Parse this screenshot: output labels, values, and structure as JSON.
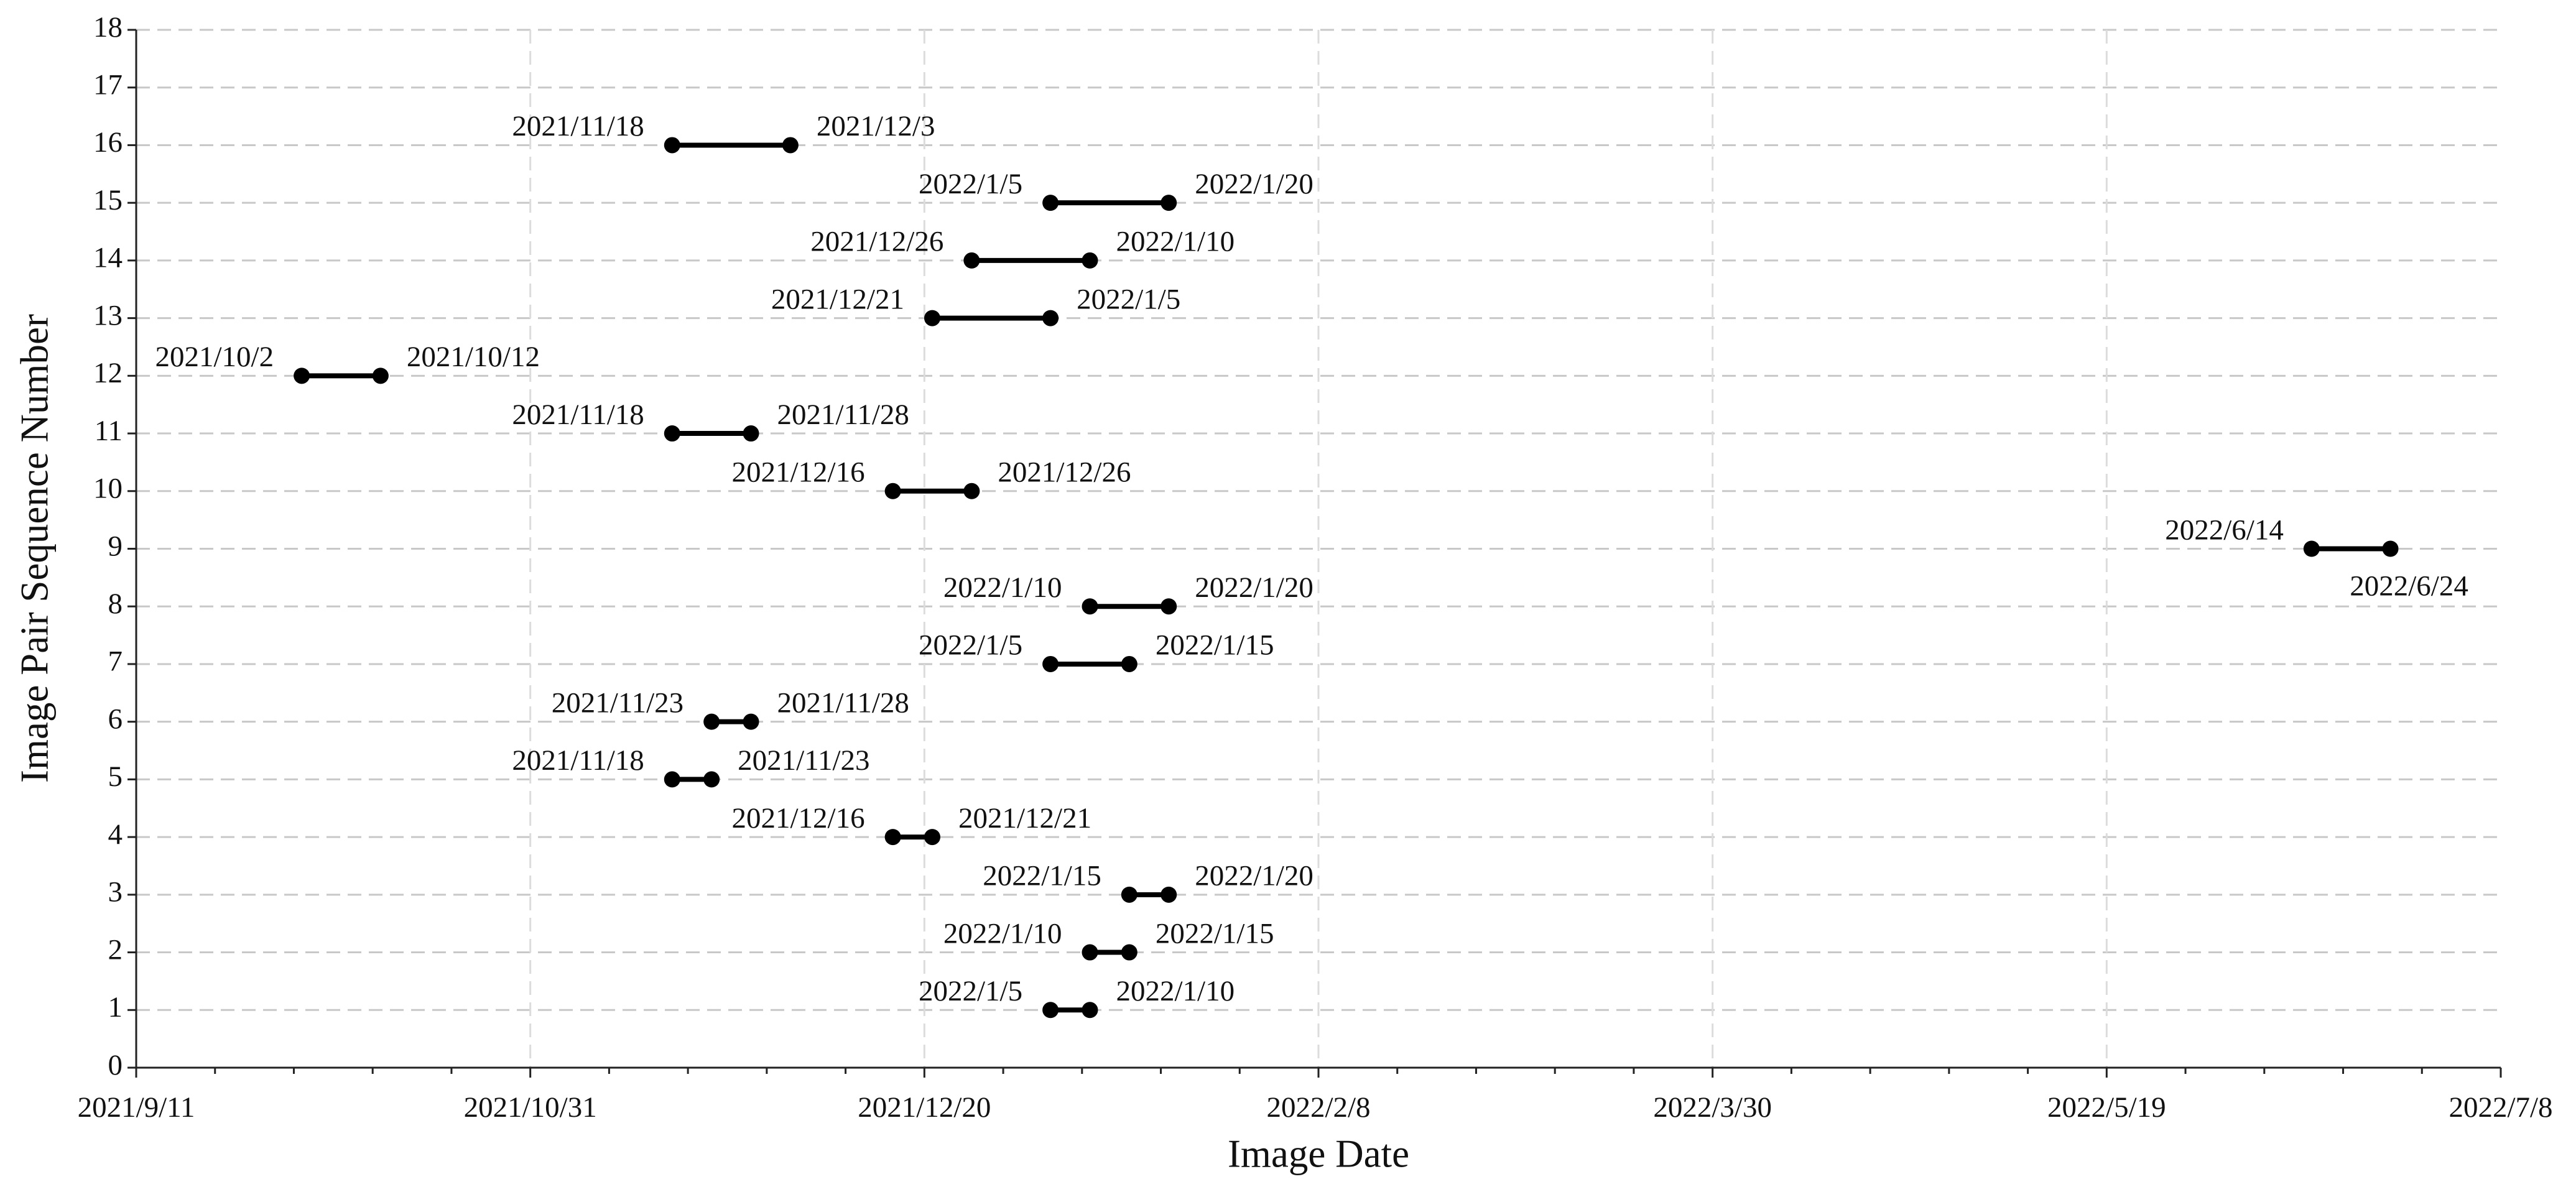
{
  "chart_data": {
    "type": "dumbbell",
    "x_label": "Image Date",
    "y_label": "Image Pair Sequence Number",
    "y": [
      16,
      15,
      14,
      13,
      12,
      11,
      10,
      9,
      8,
      7,
      6,
      5,
      4,
      3,
      2,
      1
    ],
    "start": [
      "2021/11/18",
      "2022/1/5",
      "2021/12/26",
      "2021/12/21",
      "2021/10/2",
      "2021/11/18",
      "2021/12/16",
      "2022/6/14",
      "2022/1/10",
      "2022/1/5",
      "2021/11/23",
      "2021/11/18",
      "2021/12/16",
      "2022/1/15",
      "2022/1/10",
      "2022/1/5"
    ],
    "end": [
      "2021/12/3",
      "2022/1/20",
      "2022/1/10",
      "2022/1/5",
      "2021/10/12",
      "2021/11/28",
      "2021/12/26",
      "2022/6/24",
      "2022/1/20",
      "2022/1/15",
      "2021/11/28",
      "2021/11/23",
      "2021/12/21",
      "2022/1/20",
      "2022/1/15",
      "2022/1/10"
    ],
    "color": "#000000",
    "xlim": [
      "2021/9/11",
      "2022/7/8"
    ],
    "xticks": [
      "2021/9/11",
      "2021/10/31",
      "2021/12/20",
      "2022/2/8",
      "2022/3/30",
      "2022/5/19",
      "2022/7/8"
    ],
    "ylim": [
      0,
      18
    ],
    "yticks": [
      0,
      1,
      2,
      3,
      4,
      5,
      6,
      7,
      8,
      9,
      10,
      11,
      12,
      13,
      14,
      15,
      16,
      17,
      18
    ],
    "grid": true
  }
}
